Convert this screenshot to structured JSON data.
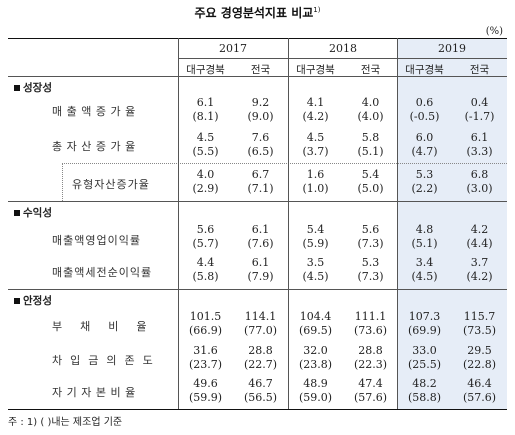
{
  "title": "주요 경영분석지표 비교",
  "title_sup": "1)",
  "unit": "(%)",
  "years": [
    "2017",
    "2018",
    "2019"
  ],
  "col_labels": [
    "대구경북",
    "전국"
  ],
  "sections": [
    {
      "name": "성장성",
      "rows": [
        {
          "label": "매출액증가율",
          "values": [
            [
              "6.1",
              "(8.1)"
            ],
            [
              "9.2",
              "(9.0)"
            ],
            [
              "4.1",
              "(4.2)"
            ],
            [
              "4.0",
              "(4.0)"
            ],
            [
              "0.6",
              "(-0.5)"
            ],
            [
              "0.4",
              "(-1.7)"
            ]
          ]
        },
        {
          "label": "총자산증가율",
          "values": [
            [
              "4.5",
              "(5.5)"
            ],
            [
              "7.6",
              "(6.5)"
            ],
            [
              "4.5",
              "(3.7)"
            ],
            [
              "5.8",
              "(5.1)"
            ],
            [
              "6.0",
              "(4.7)"
            ],
            [
              "6.1",
              "(3.3)"
            ]
          ]
        },
        {
          "label": "유형자산증가율",
          "values": [
            [
              "4.0",
              "(2.9)"
            ],
            [
              "6.7",
              "(7.1)"
            ],
            [
              "1.6",
              "(1.0)"
            ],
            [
              "5.4",
              "(5.0)"
            ],
            [
              "5.3",
              "(2.2)"
            ],
            [
              "6.8",
              "(3.0)"
            ]
          ]
        }
      ]
    },
    {
      "name": "수익성",
      "rows": [
        {
          "label": "매출액영업이익률",
          "values": [
            [
              "5.6",
              "(5.7)"
            ],
            [
              "6.1",
              "(7.6)"
            ],
            [
              "5.4",
              "(5.9)"
            ],
            [
              "5.6",
              "(7.3)"
            ],
            [
              "4.8",
              "(5.1)"
            ],
            [
              "4.2",
              "(4.4)"
            ]
          ]
        },
        {
          "label": "매출액세전순이익률",
          "values": [
            [
              "4.4",
              "(5.8)"
            ],
            [
              "6.1",
              "(7.9)"
            ],
            [
              "3.5",
              "(4.5)"
            ],
            [
              "5.3",
              "(7.3)"
            ],
            [
              "3.4",
              "(4.5)"
            ],
            [
              "3.7",
              "(4.2)"
            ]
          ]
        }
      ]
    },
    {
      "name": "안정성",
      "rows": [
        {
          "label": "부채비율",
          "values": [
            [
              "101.5",
              "(66.9)"
            ],
            [
              "114.1",
              "(77.0)"
            ],
            [
              "104.4",
              "(69.5)"
            ],
            [
              "111.1",
              "(73.6)"
            ],
            [
              "107.3",
              "(69.9)"
            ],
            [
              "115.7",
              "(73.5)"
            ]
          ]
        },
        {
          "label": "차입금의존도",
          "values": [
            [
              "31.6",
              "(23.7)"
            ],
            [
              "28.8",
              "(22.7)"
            ],
            [
              "32.0",
              "(23.8)"
            ],
            [
              "28.8",
              "(22.3)"
            ],
            [
              "33.0",
              "(25.5)"
            ],
            [
              "29.5",
              "(22.8)"
            ]
          ]
        },
        {
          "label": "자기자본비율",
          "values": [
            [
              "49.6",
              "(59.9)"
            ],
            [
              "46.7",
              "(56.5)"
            ],
            [
              "48.9",
              "(59.0)"
            ],
            [
              "47.4",
              "(57.6)"
            ],
            [
              "48.2",
              "(58.8)"
            ],
            [
              "46.4",
              "(57.6)"
            ]
          ]
        }
      ]
    }
  ],
  "note": "주 : 1) ( )내는 제조업 기준",
  "colors": {
    "highlight": "#e6edf7"
  }
}
